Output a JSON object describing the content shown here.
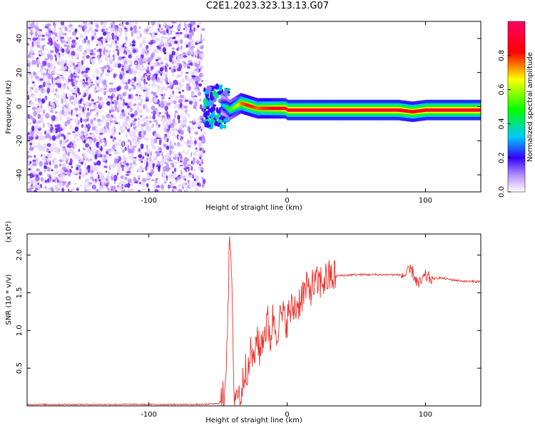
{
  "title": "C2E1.2023.323.13.13.G07",
  "colorbar": {
    "label": "Normalized spectral amplitude",
    "ticks": [
      "0.0",
      "0.2",
      "0.4",
      "0.6",
      "0.8"
    ]
  },
  "chart_data": [
    {
      "type": "heatmap",
      "title": "",
      "xlabel": "Height of straight line (km)",
      "ylabel": "Frequency (Hz)",
      "xlim": [
        -188,
        140
      ],
      "ylim": [
        -50,
        50
      ],
      "x_ticks": [
        "-100",
        "0",
        "100"
      ],
      "y_ticks": [
        "40",
        "20",
        "0",
        "-20",
        "-40"
      ],
      "zlim": [
        0,
        1
      ],
      "grid": false,
      "noise_region_x": [
        -188,
        -60
      ],
      "transition_region_x": [
        -60,
        -42
      ],
      "signal_ridge": {
        "x": [
          -48,
          -45,
          -42,
          -38,
          -34,
          -30,
          -26,
          -22,
          -18,
          -14,
          -10,
          -6,
          -2,
          0,
          10,
          20,
          40,
          60,
          80,
          90,
          100,
          120,
          140
        ],
        "frequency": [
          1,
          0,
          -2,
          0,
          2,
          1,
          0,
          -1,
          -1,
          -1,
          -1,
          -1,
          -1,
          -2,
          -2,
          -2,
          -2,
          -2,
          -2,
          -3,
          -2,
          -2,
          -2
        ],
        "amplitude": [
          0.3,
          0.4,
          0.5,
          0.6,
          0.75,
          0.8,
          0.8,
          0.75,
          0.8,
          0.8,
          0.85,
          0.85,
          0.9,
          0.9,
          0.9,
          0.9,
          0.9,
          0.9,
          0.9,
          0.85,
          0.9,
          0.9,
          0.9
        ]
      }
    },
    {
      "type": "line",
      "title": "",
      "xlabel": "Height of straight line (km)",
      "ylabel": "SNR (10 * v/v)",
      "y_multiplier": "(x10⁴)",
      "xlim": [
        -188,
        140
      ],
      "ylim": [
        0,
        2.28
      ],
      "x_ticks": [
        "-100",
        "0",
        "100"
      ],
      "y_ticks": [
        "0.5",
        "1.0",
        "1.5",
        "2.0"
      ],
      "grid": false,
      "color": "#e8302a",
      "series": [
        {
          "x": [
            -188,
            -150,
            -100,
            -60,
            -50,
            -46,
            -44,
            -42,
            -41,
            -40,
            -39,
            -38,
            -36,
            -34,
            -32,
            -30,
            -28,
            -26,
            -24,
            -22,
            -20,
            -18,
            -16,
            -14,
            -12,
            -10,
            -8,
            -6,
            -4,
            -2,
            0,
            2,
            5,
            8,
            10,
            12,
            15,
            20,
            25,
            30,
            35,
            40,
            50,
            60,
            70,
            80,
            85,
            90,
            95,
            100,
            105,
            110,
            120,
            130,
            140
          ],
          "y": [
            0.02,
            0.02,
            0.02,
            0.02,
            0.03,
            0.1,
            0.6,
            1.9,
            2.22,
            1.5,
            0.5,
            0.15,
            0.2,
            0.1,
            0.3,
            0.6,
            0.4,
            0.8,
            0.5,
            1.0,
            0.7,
            0.9,
            1.0,
            1.1,
            0.9,
            1.2,
            1.0,
            1.1,
            1.2,
            1.15,
            1.15,
            1.25,
            1.3,
            1.35,
            1.45,
            1.5,
            1.55,
            1.6,
            1.65,
            1.7,
            1.72,
            1.73,
            1.74,
            1.74,
            1.74,
            1.74,
            1.73,
            1.8,
            1.6,
            1.72,
            1.68,
            1.7,
            1.67,
            1.65,
            1.65
          ]
        }
      ]
    }
  ]
}
